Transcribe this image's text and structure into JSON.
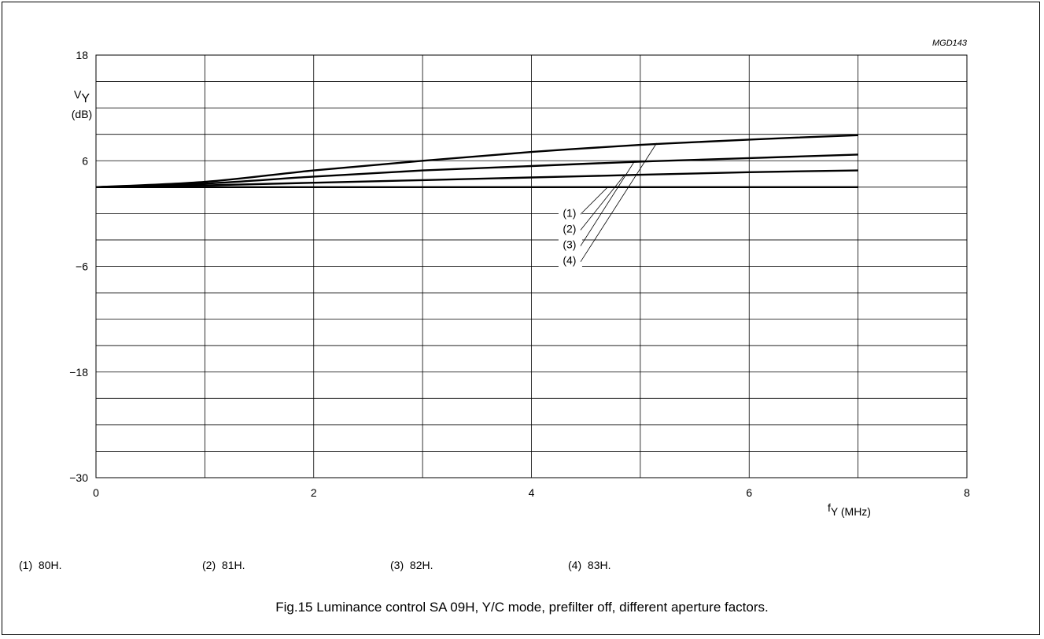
{
  "figure_id": "MGD143",
  "caption": "Fig.15  Luminance control SA 09H, Y/C mode, prefilter off, different aperture factors.",
  "legend": [
    {
      "key": "(1)",
      "label": "80H."
    },
    {
      "key": "(2)",
      "label": "81H."
    },
    {
      "key": "(3)",
      "label": "82H."
    },
    {
      "key": "(4)",
      "label": "83H."
    }
  ],
  "chart_data": {
    "type": "line",
    "title": "",
    "ylabel_main": "V",
    "ylabel_sub": "Y",
    "ylabel_unit": "(dB)",
    "xlabel_main": "f",
    "xlabel_sub": "Y (MHz)",
    "xlim": [
      0,
      8
    ],
    "ylim": [
      -30,
      18
    ],
    "x_ticks": [
      0,
      2,
      4,
      6,
      8
    ],
    "x_tick_labels": [
      "0",
      "2",
      "4",
      "6",
      "8"
    ],
    "y_ticks": [
      -30,
      -18,
      -6,
      6,
      18
    ],
    "y_tick_labels": [
      "−30",
      "−18",
      "−6",
      "6",
      "18"
    ],
    "x_grid_step": 1,
    "y_grid_step": 3,
    "grid": true,
    "series": [
      {
        "name": "(1)",
        "x": [
          0,
          1,
          2,
          3,
          4,
          5,
          6,
          7
        ],
        "y": [
          3,
          3,
          3,
          3,
          3,
          3,
          3,
          3
        ]
      },
      {
        "name": "(2)",
        "x": [
          0,
          1,
          2,
          3,
          4,
          5,
          6,
          7
        ],
        "y": [
          3,
          3.2,
          3.5,
          3.8,
          4.1,
          4.4,
          4.7,
          4.9
        ]
      },
      {
        "name": "(3)",
        "x": [
          0,
          1,
          2,
          3,
          4,
          5,
          6,
          7
        ],
        "y": [
          3,
          3.4,
          4.2,
          4.9,
          5.4,
          5.9,
          6.3,
          6.7
        ]
      },
      {
        "name": "(4)",
        "x": [
          0,
          1,
          2,
          3,
          4,
          5,
          6,
          7
        ],
        "y": [
          3,
          3.6,
          4.9,
          6,
          7,
          7.8,
          8.4,
          8.9
        ]
      }
    ],
    "series_label_positions": [
      {
        "name": "(1)",
        "at": [
          4.35,
          0.1
        ],
        "points_to": [
          4.7,
          3
        ]
      },
      {
        "name": "(2)",
        "at": [
          4.35,
          -1.7
        ],
        "points_to": [
          4.85,
          4.3
        ]
      },
      {
        "name": "(3)",
        "at": [
          4.35,
          -3.5
        ],
        "points_to": [
          4.95,
          6.0
        ]
      },
      {
        "name": "(4)",
        "at": [
          4.35,
          -5.3
        ],
        "points_to": [
          5.15,
          8.0
        ]
      }
    ]
  }
}
